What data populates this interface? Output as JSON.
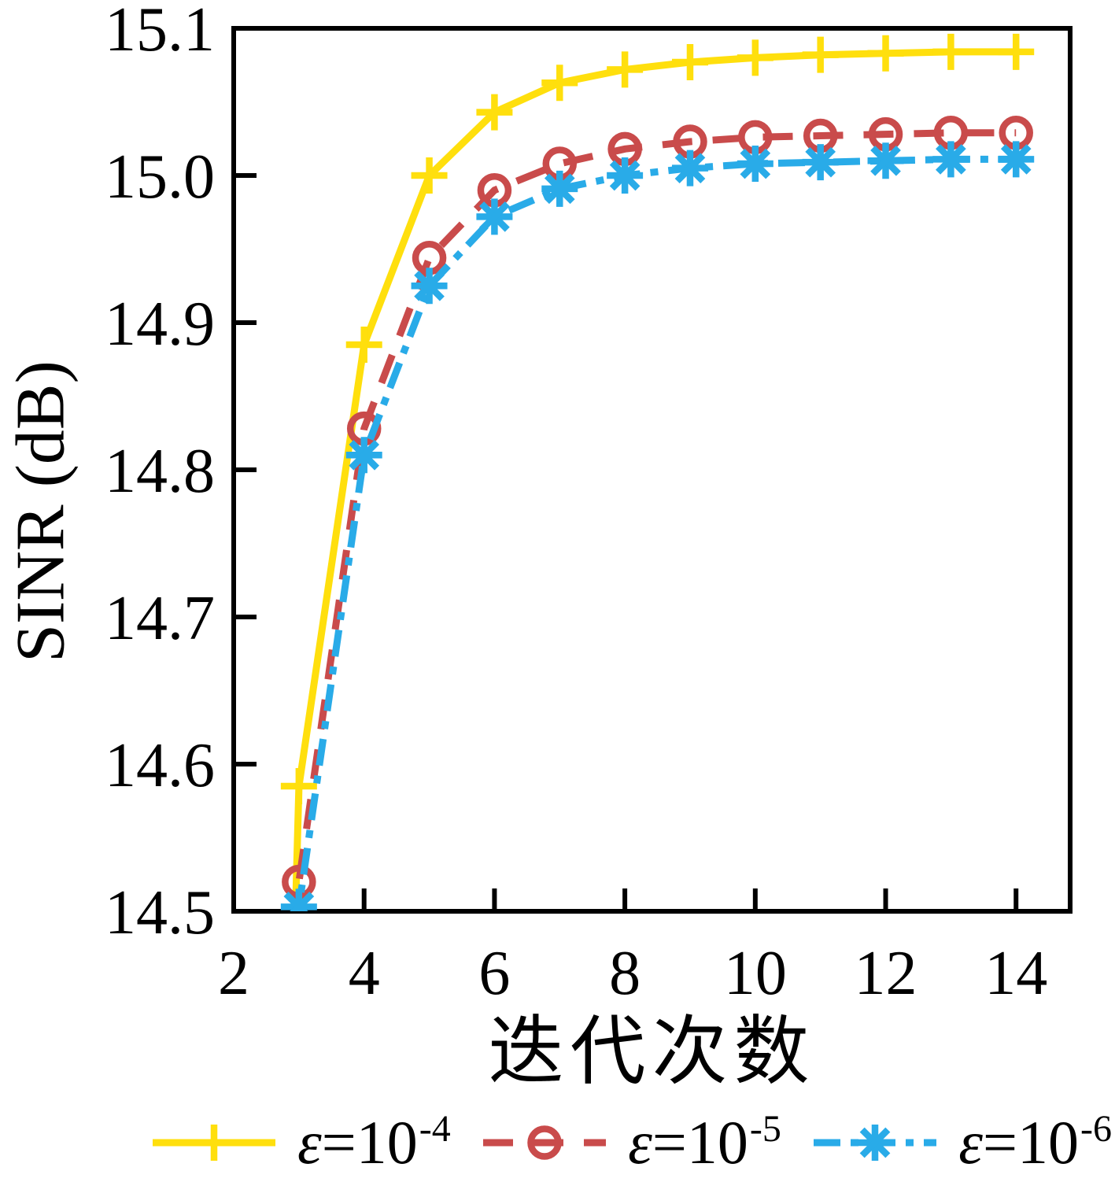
{
  "chart_data": {
    "type": "line",
    "title": "",
    "xlabel": "迭代次数",
    "ylabel": "SINR (dB)",
    "xlim": [
      2,
      14.83
    ],
    "ylim": [
      14.5,
      15.1
    ],
    "grid": false,
    "legend_position": "bottom",
    "x_ticks": [
      2,
      4,
      6,
      8,
      10,
      12,
      14
    ],
    "y_ticks": [
      14.5,
      14.6,
      14.7,
      14.8,
      14.9,
      15.0,
      15.1
    ],
    "y_tick_labels": [
      "14.5",
      "14.6",
      "14.7",
      "14.8",
      "14.9",
      "15.0",
      "15.1"
    ],
    "x": [
      3,
      4,
      5,
      6,
      7,
      8,
      9,
      10,
      11,
      12,
      13,
      14
    ],
    "series": [
      {
        "name": "ε=10^-4",
        "label_eps": "ε",
        "label_base": "=10",
        "label_exp": "-4",
        "color": "#FFDF0D",
        "line_style": "solid",
        "marker": "plus",
        "values": [
          14.585,
          14.885,
          15.0,
          15.043,
          15.063,
          15.072,
          15.077,
          15.08,
          15.082,
          15.083,
          15.084,
          15.084
        ]
      },
      {
        "name": "ε=10^-5",
        "label_eps": "ε",
        "label_base": "=10",
        "label_exp": "-5",
        "color": "#C94B4B",
        "line_style": "dashed",
        "marker": "circle",
        "values": [
          14.52,
          14.828,
          14.944,
          14.99,
          15.008,
          15.018,
          15.023,
          15.026,
          15.027,
          15.028,
          15.029,
          15.029
        ]
      },
      {
        "name": "ε=10^-6",
        "label_eps": "ε",
        "label_base": "=10",
        "label_exp": "-6",
        "color": "#29ABE8",
        "line_style": "dashdot",
        "marker": "asterisk",
        "values": [
          14.503,
          14.81,
          14.925,
          14.972,
          14.991,
          15.0,
          15.005,
          15.008,
          15.009,
          15.01,
          15.011,
          15.011
        ]
      }
    ]
  },
  "style": {
    "axis_color": "#000000",
    "background": "#ffffff"
  }
}
